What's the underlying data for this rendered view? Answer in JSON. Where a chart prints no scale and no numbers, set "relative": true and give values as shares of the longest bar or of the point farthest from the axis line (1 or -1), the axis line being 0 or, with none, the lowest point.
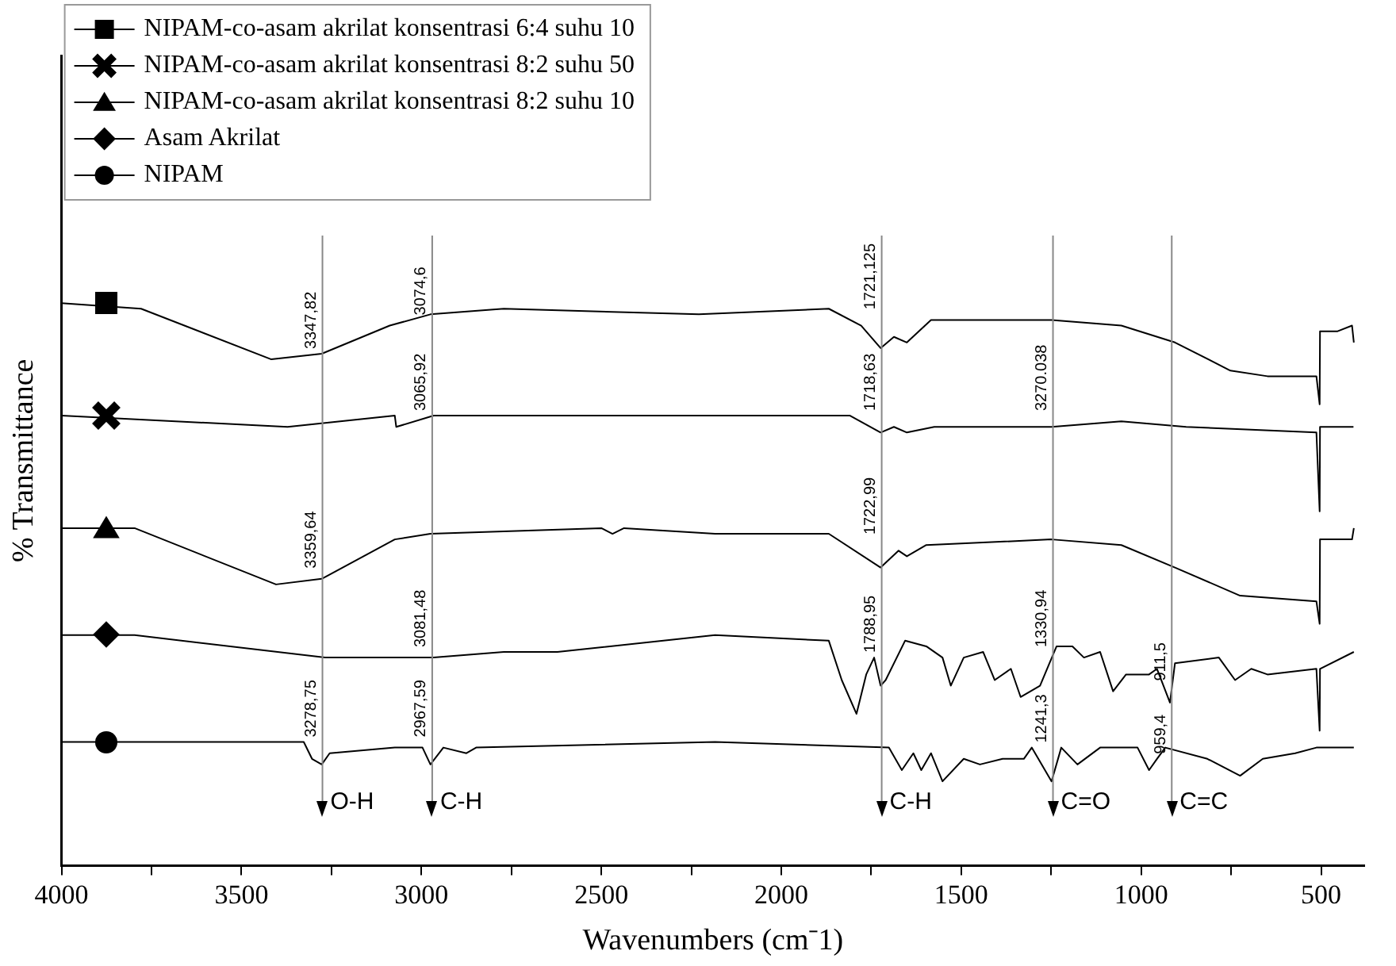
{
  "chart_data": {
    "type": "line",
    "relative": true,
    "xlabel": "Wavenumbers (cm⁻1)",
    "ylabel": "% Transmittance",
    "xlim": [
      4000,
      380
    ],
    "xticks": [
      4000,
      {
        "value": 3750,
        "label": null
      },
      3500,
      {
        "value": 3250,
        "label": null
      },
      3000,
      {
        "value": 2750,
        "label": null
      },
      2500,
      {
        "value": 2250,
        "label": null
      },
      2000,
      {
        "value": 1750,
        "label": null
      },
      1500,
      {
        "value": 1250,
        "label": null
      },
      1000,
      {
        "value": 750,
        "label": null
      },
      500
    ],
    "grid": false,
    "legend": "top left",
    "line_style": "solid",
    "series": [
      {
        "name": "NIPAM-co-asam akrilat konsentrasi 6:4 suhu 10",
        "color": "#000000",
        "x": [
          4000,
          3779,
          3417,
          3277,
          3088,
          2975,
          2771,
          2229,
          1868,
          1778,
          1724,
          1687,
          1651,
          1584,
          1475,
          1249,
          1055,
          906,
          752,
          649,
          513,
          504,
          503,
          454,
          414,
          409
        ],
        "values": [
          1.0,
          0.99,
          0.9,
          0.91,
          0.96,
          0.98,
          0.99,
          0.98,
          0.99,
          0.96,
          0.92,
          0.94,
          0.93,
          0.97,
          0.97,
          0.97,
          0.96,
          0.93,
          0.88,
          0.87,
          0.87,
          0.82,
          0.95,
          0.95,
          0.96,
          0.93
        ]
      },
      {
        "name": "NIPAM-co-asam akrilat konsentrasi 8:2 suhu 50",
        "color": "#000000",
        "x": [
          4000,
          3372,
          3074,
          3070,
          2966,
          2184,
          1809,
          1724,
          1687,
          1651,
          1575,
          1529,
          1462,
          1249,
          1055,
          875,
          513,
          504,
          503,
          410
        ],
        "values": [
          0.8,
          0.78,
          0.8,
          0.78,
          0.8,
          0.8,
          0.8,
          0.77,
          0.78,
          0.77,
          0.78,
          0.78,
          0.78,
          0.78,
          0.79,
          0.78,
          0.77,
          0.63,
          0.78,
          0.78
        ]
      },
      {
        "name": "NIPAM-co-asam akrilat konsentrasi 8:2 suhu 10",
        "color": "#000000",
        "x": [
          4000,
          3797,
          3404,
          3277,
          3074,
          2975,
          2500,
          2469,
          2437,
          2184,
          1868,
          1724,
          1674,
          1651,
          1597,
          1249,
          1055,
          906,
          725,
          513,
          504,
          503,
          414,
          409
        ],
        "values": [
          0.6,
          0.6,
          0.5,
          0.51,
          0.58,
          0.59,
          0.6,
          0.59,
          0.6,
          0.59,
          0.59,
          0.53,
          0.56,
          0.55,
          0.57,
          0.58,
          0.57,
          0.53,
          0.48,
          0.47,
          0.43,
          0.58,
          0.58,
          0.6
        ]
      },
      {
        "name": "Asam Akrilat",
        "color": "#000000",
        "x": [
          4000,
          3797,
          3268,
          3101,
          2966,
          2771,
          2622,
          2184,
          1868,
          1832,
          1791,
          1764,
          1742,
          1724,
          1710,
          1656,
          1597,
          1552,
          1529,
          1493,
          1439,
          1407,
          1362,
          1335,
          1281,
          1235,
          1191,
          1159,
          1114,
          1078,
          1042,
          978,
          956,
          920,
          906,
          784,
          739,
          694,
          649,
          513,
          504,
          503,
          409
        ],
        "values": [
          0.41,
          0.41,
          0.37,
          0.37,
          0.37,
          0.38,
          0.38,
          0.41,
          0.4,
          0.33,
          0.27,
          0.34,
          0.37,
          0.32,
          0.33,
          0.4,
          0.39,
          0.37,
          0.32,
          0.37,
          0.38,
          0.33,
          0.35,
          0.3,
          0.32,
          0.39,
          0.39,
          0.37,
          0.38,
          0.31,
          0.34,
          0.34,
          0.35,
          0.29,
          0.36,
          0.37,
          0.33,
          0.35,
          0.34,
          0.35,
          0.24,
          0.35,
          0.38
        ]
      },
      {
        "name": "NIPAM",
        "color": "#000000",
        "x": [
          4000,
          3327,
          3304,
          3277,
          3255,
          3074,
          2997,
          2975,
          2939,
          2875,
          2848,
          2184,
          1701,
          1665,
          1633,
          1611,
          1584,
          1552,
          1493,
          1448,
          1385,
          1326,
          1304,
          1249,
          1222,
          1177,
          1114,
          1042,
          1010,
          978,
          956,
          933,
          816,
          725,
          662,
          572,
          513,
          409
        ],
        "values": [
          0.22,
          0.22,
          0.19,
          0.18,
          0.2,
          0.21,
          0.21,
          0.18,
          0.21,
          0.2,
          0.21,
          0.22,
          0.21,
          0.17,
          0.2,
          0.17,
          0.2,
          0.15,
          0.19,
          0.18,
          0.19,
          0.19,
          0.21,
          0.15,
          0.21,
          0.18,
          0.21,
          0.21,
          0.21,
          0.17,
          0.19,
          0.21,
          0.19,
          0.16,
          0.19,
          0.2,
          0.21,
          0.21
        ]
      }
    ],
    "ref_lines": [
      {
        "axis": "x",
        "value": 3275,
        "label": "O-H",
        "color": "#888888"
      },
      {
        "axis": "x",
        "value": 2970,
        "label": "C-H",
        "color": "#888888"
      },
      {
        "axis": "x",
        "value": 1721,
        "label": "C-H",
        "color": "#888888"
      },
      {
        "axis": "x",
        "value": 1245,
        "label": "C=O",
        "color": "#888888"
      },
      {
        "axis": "x",
        "value": 915,
        "label": "C=C",
        "color": "#888888"
      }
    ],
    "annotations": [
      {
        "text": "3347,82",
        "x": 3275,
        "y": 0.91
      },
      {
        "text": "3074,6",
        "x": 2970,
        "y": 0.97
      },
      {
        "text": "3065,92",
        "x": 2970,
        "y": 0.8
      },
      {
        "text": "3359,64",
        "x": 3275,
        "y": 0.52
      },
      {
        "text": "3081,48",
        "x": 2970,
        "y": 0.38
      },
      {
        "text": "3278,75",
        "x": 3275,
        "y": 0.22
      },
      {
        "text": "2967,59",
        "x": 2970,
        "y": 0.22
      },
      {
        "text": "1721,125",
        "x": 1721,
        "y": 0.98
      },
      {
        "text": "1718,63",
        "x": 1721,
        "y": 0.8
      },
      {
        "text": "3270.038",
        "x": 1245,
        "y": 0.8
      },
      {
        "text": "1722,99",
        "x": 1721,
        "y": 0.58
      },
      {
        "text": "1788,95",
        "x": 1721,
        "y": 0.37
      },
      {
        "text": "1330,94",
        "x": 1245,
        "y": 0.38
      },
      {
        "text": "911,5",
        "x": 915,
        "y": 0.32
      },
      {
        "text": "1241,3",
        "x": 1245,
        "y": 0.21
      },
      {
        "text": "959,4",
        "x": 915,
        "y": 0.19
      }
    ]
  }
}
